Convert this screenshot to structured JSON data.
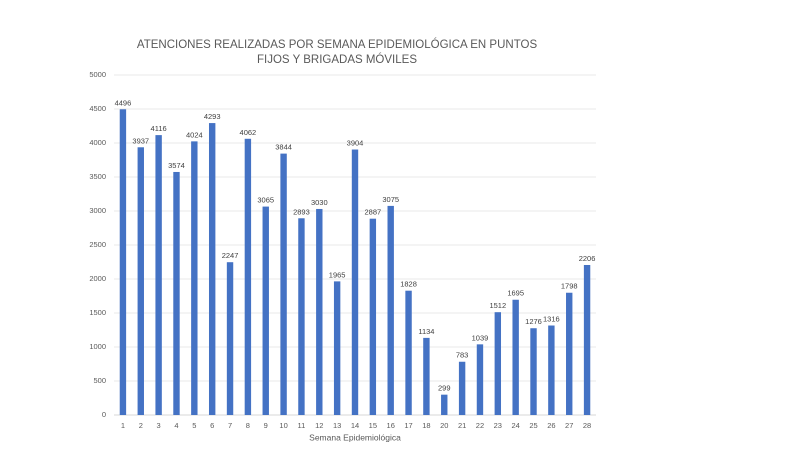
{
  "chart_data": {
    "type": "bar",
    "title": [
      "ATENCIONES REALIZADAS POR SEMANA EPIDEMIOLÓGICA EN PUNTOS",
      "FIJOS Y BRIGADAS MÓVILES"
    ],
    "x_label": "Semana Epidemiológica",
    "categories": [
      "1",
      "2",
      "3",
      "4",
      "5",
      "6",
      "7",
      "8",
      "9",
      "10",
      "11",
      "12",
      "13",
      "14",
      "15",
      "16",
      "17",
      "18",
      "20",
      "21",
      "22",
      "23",
      "24",
      "25",
      "26",
      "27",
      "28"
    ],
    "values": [
      4496,
      3937,
      4116,
      3574,
      4024,
      4293,
      2247,
      4062,
      3065,
      3844,
      2893,
      3030,
      1965,
      3904,
      2887,
      3075,
      1828,
      1134,
      299,
      783,
      1039,
      1512,
      1695,
      1276,
      1316,
      1798,
      2206
    ],
    "color": "#4472c4",
    "ylim": [
      0,
      5000
    ],
    "yticks": [
      0,
      500,
      1000,
      1500,
      2000,
      2500,
      3000,
      3500,
      4000,
      4500,
      5000
    ],
    "grid": true
  }
}
